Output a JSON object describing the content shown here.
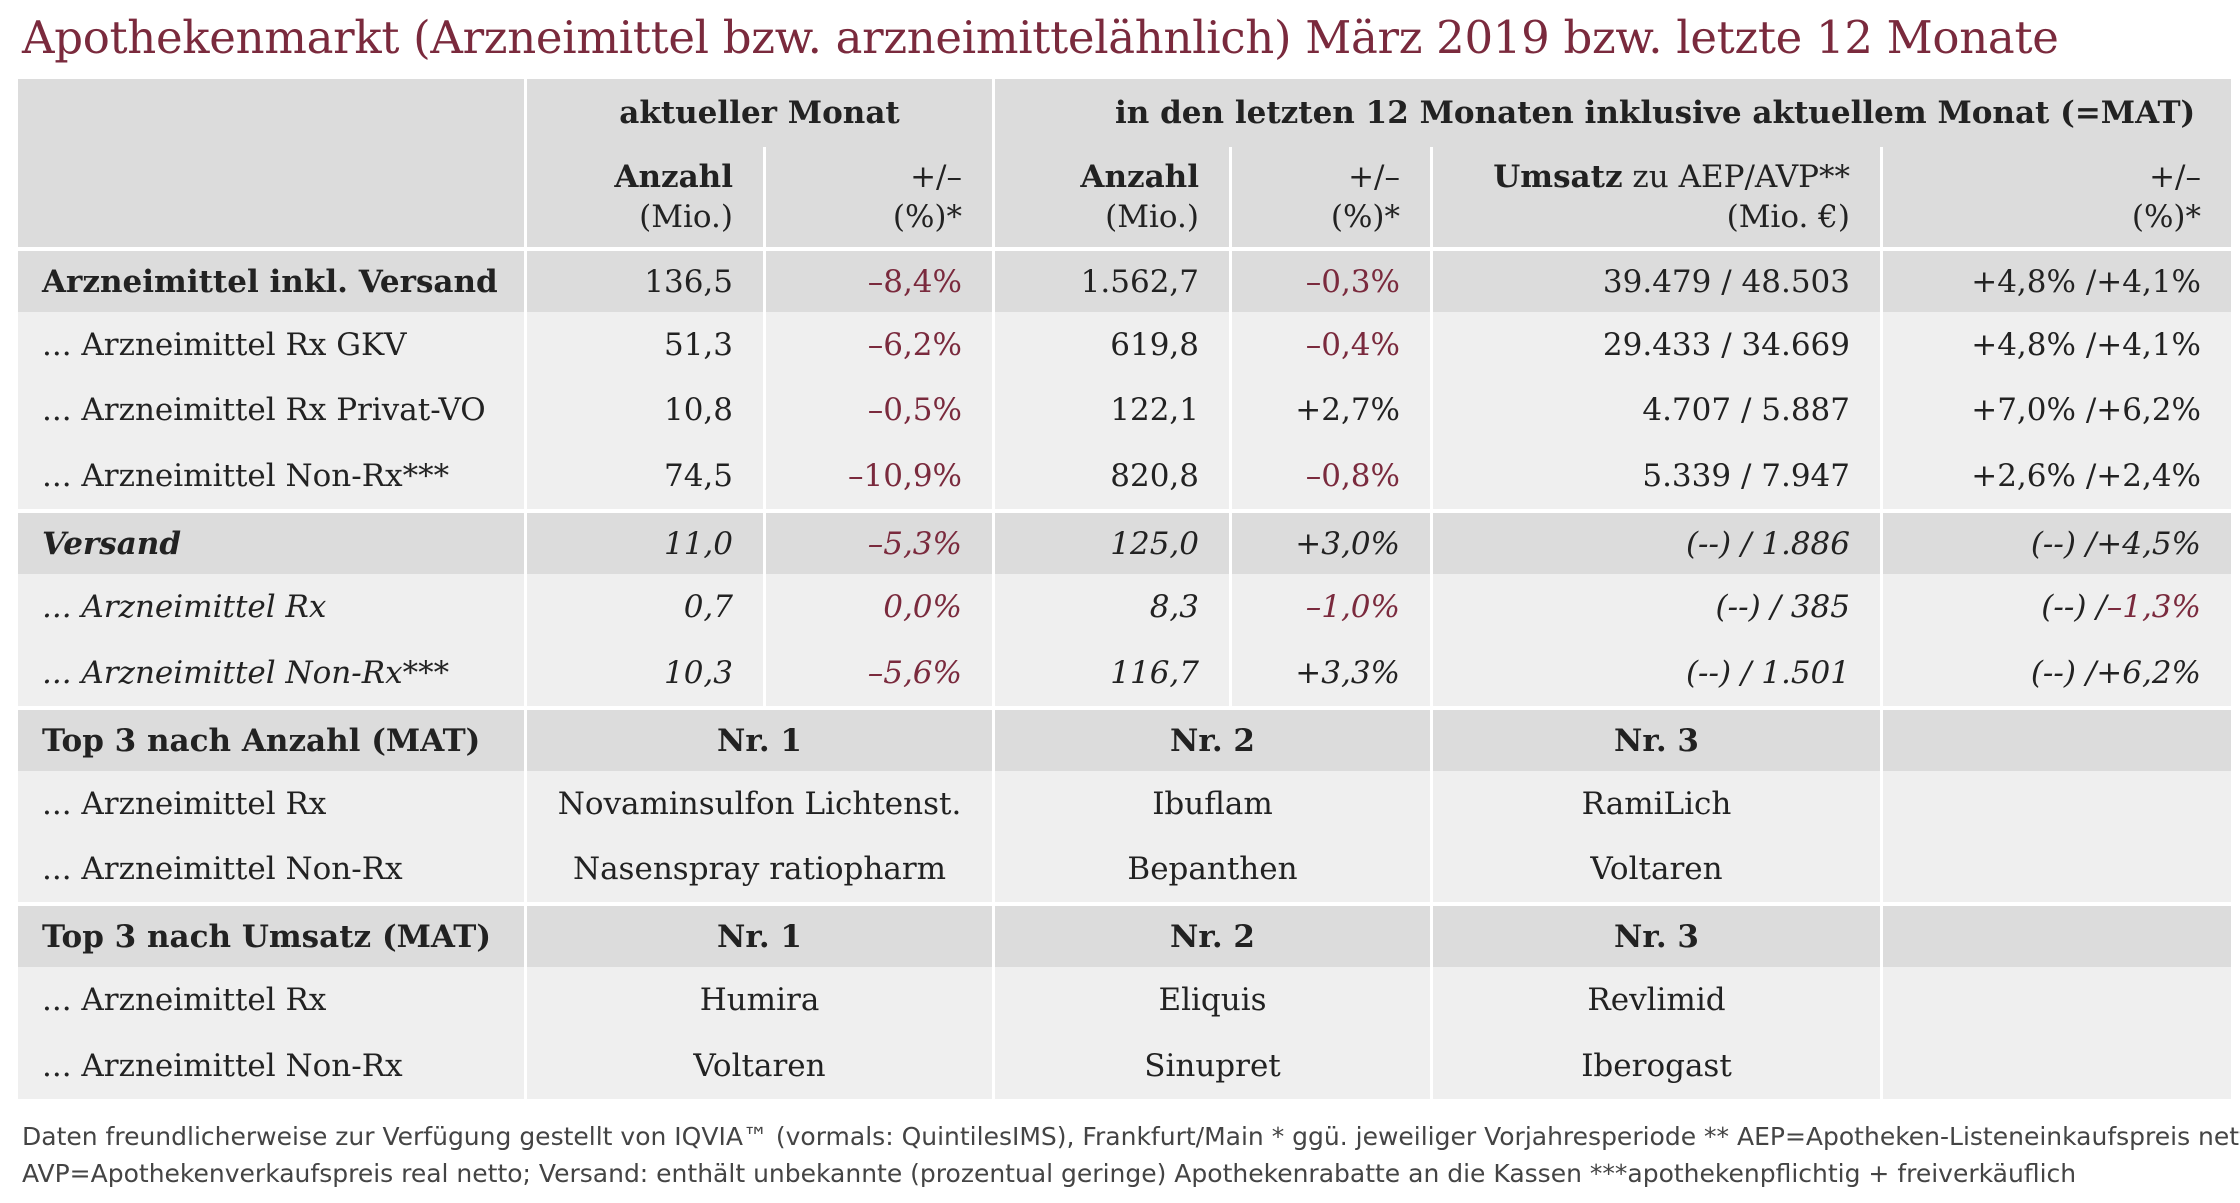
{
  "title": "Apothekenmarkt (Arzneimittel bzw. arzneimittelähnlich) März 2019 bzw. letzte 12 Monate",
  "header": {
    "group_month": "aktueller Monat",
    "group_mat": "in den letzten 12 Monaten inklusive aktuellem Monat (=MAT)",
    "anzahl": "Anzahl",
    "mio": "(Mio.)",
    "plusminus": "+/–",
    "pct_star": "(%)*",
    "umsatz": "Umsatz",
    "umsatz_rest": " zu AEP/AVP**",
    "mio_eur": "(Mio. €)"
  },
  "rows": [
    {
      "label": "Arzneimittel inkl. Versand",
      "m_anzahl": "136,5",
      "m_pct": "–8,4%",
      "mat_anzahl": "1.562,7",
      "mat_pct": "–0,3%",
      "umsatz": "39.479 / 48.503",
      "u_pct_a": "+4,8% / ",
      "u_pct_b": "+4,1%"
    },
    {
      "label": "... Arzneimittel Rx GKV",
      "m_anzahl": "51,3",
      "m_pct": "–6,2%",
      "mat_anzahl": "619,8",
      "mat_pct": "–0,4%",
      "umsatz": "29.433 / 34.669",
      "u_pct_a": "+4,8% / ",
      "u_pct_b": "+4,1%"
    },
    {
      "label": "... Arzneimittel Rx Privat-VO",
      "m_anzahl": "10,8",
      "m_pct": "–0,5%",
      "mat_anzahl": "122,1",
      "mat_pct": "+2,7%",
      "umsatz": "4.707 / 5.887",
      "u_pct_a": "+7,0% / ",
      "u_pct_b": "+6,2%"
    },
    {
      "label": "... Arzneimittel Non-Rx***",
      "m_anzahl": "74,5",
      "m_pct": "–10,9%",
      "mat_anzahl": "820,8",
      "mat_pct": "–0,8%",
      "umsatz": "5.339 / 7.947",
      "u_pct_a": "+2,6% / ",
      "u_pct_b": "+2,4%"
    },
    {
      "label": "Versand",
      "m_anzahl": "11,0",
      "m_pct": "–5,3%",
      "mat_anzahl": "125,0",
      "mat_pct": "+3,0%",
      "umsatz": "(--) / 1.886",
      "u_pct_a": "(--) / ",
      "u_pct_b": "+4,5%"
    },
    {
      "label": "... Arzneimittel Rx",
      "m_anzahl": "0,7",
      "m_pct": "0,0%",
      "mat_anzahl": "8,3",
      "mat_pct": "–1,0%",
      "umsatz": "(--) / 385",
      "u_pct_a": "(--) / ",
      "u_pct_b": "–1,3%"
    },
    {
      "label": "... Arzneimittel Non-Rx***",
      "m_anzahl": "10,3",
      "m_pct": "–5,6%",
      "mat_anzahl": "116,7",
      "mat_pct": "+3,3%",
      "umsatz": "(--) / 1.501",
      "u_pct_a": "(--) / ",
      "u_pct_b": "+6,2%"
    }
  ],
  "top_anzahl": {
    "heading": "Top 3 nach Anzahl (MAT)",
    "nr1": "Nr. 1",
    "nr2": "Nr. 2",
    "nr3": "Nr. 3",
    "rows": [
      {
        "label": "... Arzneimittel Rx",
        "p1": "Novaminsulfon Lichtenst.",
        "p2": "Ibuflam",
        "p3": "RamiLich"
      },
      {
        "label": "... Arzneimittel Non-Rx",
        "p1": "Nasenspray ratiopharm",
        "p2": "Bepanthen",
        "p3": "Voltaren"
      }
    ]
  },
  "top_umsatz": {
    "heading": "Top 3 nach Umsatz (MAT)",
    "nr1": "Nr. 1",
    "nr2": "Nr. 2",
    "nr3": "Nr. 3",
    "rows": [
      {
        "label": "... Arzneimittel Rx",
        "p1": "Humira",
        "p2": "Eliquis",
        "p3": "Revlimid"
      },
      {
        "label": "... Arzneimittel Non-Rx",
        "p1": "Voltaren",
        "p2": "Sinupret",
        "p3": "Iberogast"
      }
    ]
  },
  "footnote": {
    "line1": "Daten freundlicherweise zur Verfügung gestellt von IQVIA™ (vormals: QuintilesIMS), Frankfurt/Main  * ggü. jeweiliger Vorjahresperiode  ** AEP=Apotheken-Listeneinkaufspreis netto,",
    "line2": "AVP=Apothekenverkaufspreis real netto; Versand: enthält unbekannte (prozentual geringe) Apothekenrabatte an die Kassen    ***apothekenpflichtig + freiverkäuflich"
  },
  "colors": {
    "title": "#7a2a3d",
    "negative": "#7a2a3d",
    "band_dark": "#dcdcdc",
    "band_light": "#efefef"
  }
}
